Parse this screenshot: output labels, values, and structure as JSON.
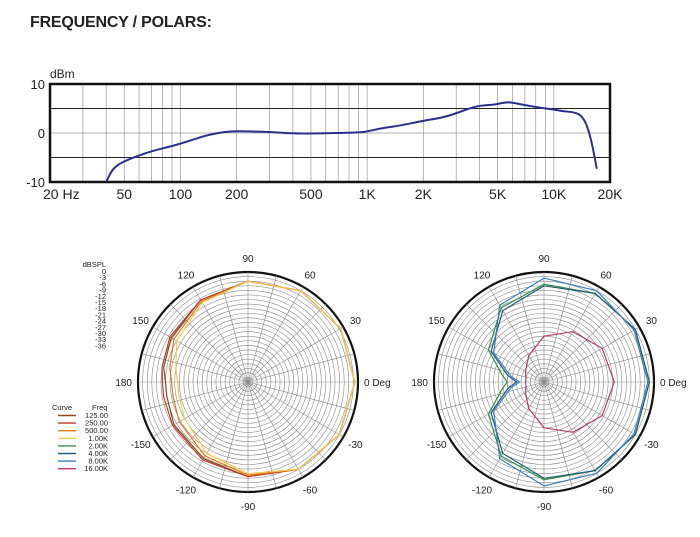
{
  "page": {
    "title": "FREQUENCY / POLARS:"
  },
  "chart_data": [
    {
      "type": "line",
      "ylabel": "dBm",
      "x_scale": "log",
      "xlim": [
        20,
        20000
      ],
      "ylim": [
        -10,
        10
      ],
      "grid": true,
      "x_tick_labels": [
        {
          "value": 20,
          "label": "20  Hz"
        },
        {
          "value": 50,
          "label": "50"
        },
        {
          "value": 100,
          "label": "100"
        },
        {
          "value": 200,
          "label": "200"
        },
        {
          "value": 500,
          "label": "500"
        },
        {
          "value": 1000,
          "label": "1K"
        },
        {
          "value": 2000,
          "label": "2K"
        },
        {
          "value": 5000,
          "label": "5K"
        },
        {
          "value": 10000,
          "label": "10K"
        },
        {
          "value": 20000,
          "label": "20K"
        }
      ],
      "y_tick_labels": [
        {
          "value": 10,
          "label": "10"
        },
        {
          "value": 0,
          "label": "0"
        },
        {
          "value": -10,
          "label": "-10"
        }
      ],
      "series": [
        {
          "color": "#2b2f8c",
          "x": [
            40,
            43,
            47,
            52,
            60,
            70,
            85,
            100,
            120,
            140,
            170,
            200,
            300,
            400,
            500,
            700,
            900,
            1000,
            1200,
            1500,
            2000,
            2500,
            3000,
            3500,
            4000,
            4500,
            5000,
            5500,
            6000,
            7000,
            8000,
            9000,
            10000,
            11000,
            13000,
            14000,
            15000,
            16000,
            17000
          ],
          "y": [
            -10,
            -7.5,
            -6.3,
            -5.5,
            -4.6,
            -3.7,
            -2.9,
            -2.2,
            -1.2,
            -0.4,
            0.2,
            0.4,
            0.2,
            -0.1,
            -0.1,
            0,
            0.1,
            0.3,
            1.0,
            1.5,
            2.5,
            3.1,
            4.0,
            5.0,
            5.6,
            5.7,
            5.9,
            6.3,
            6.2,
            5.7,
            5.3,
            5.0,
            4.8,
            4.5,
            4.2,
            3.6,
            1.8,
            -2.0,
            -7.3
          ]
        }
      ]
    },
    {
      "type": "polar",
      "legend_title_curve": "Curve",
      "legend_title_freq": "Freq",
      "radial_unit": "dBSPL",
      "radial_tick_labels": [
        "0",
        "-3",
        "-6",
        "-9",
        "-12",
        "-15",
        "-18",
        "-21",
        "-24",
        "-27",
        "-30",
        "-33",
        "-36"
      ],
      "rlim": [
        -36,
        0
      ],
      "angle_labels": [
        "0 Deg",
        "30",
        "60",
        "90",
        "120",
        "150",
        "180",
        "-150",
        "-120",
        "-90",
        "-60",
        "-30"
      ],
      "angles": [
        0,
        30,
        60,
        90,
        120,
        150,
        180,
        210,
        240,
        270,
        300,
        330
      ],
      "series": [
        {
          "name": "125.00",
          "color": "#8b4a1e",
          "r": [
            -1,
            -1,
            -1.5,
            -3,
            -5,
            -7,
            -8,
            -9,
            -9,
            -8,
            -7,
            -5,
            -3,
            -1.5,
            -1
          ]
        },
        {
          "name": "250.00",
          "color": "#c0392b",
          "r": [
            -1,
            -1,
            -1.5,
            -3,
            -5,
            -6.5,
            -7.5,
            -8,
            -8,
            -7.5,
            -6.5,
            -5,
            -3,
            -1.5,
            -1
          ]
        },
        {
          "name": "500.00",
          "color": "#e07b1a",
          "r": [
            -1,
            -1,
            -1.5,
            -3,
            -5.5,
            -8,
            -10,
            -11,
            -11,
            -10,
            -8,
            -5.5,
            -3,
            -1.5,
            -1
          ]
        },
        {
          "name": "1.00K",
          "color": "#f2c94c",
          "r": [
            -1,
            -1,
            -1.5,
            -3,
            -6,
            -9,
            -12,
            -13,
            -13,
            -12,
            -9,
            -6,
            -3,
            -1.5,
            -1
          ]
        },
        {
          "name": "2.00K",
          "color": "#3a8f4a",
          "r": [
            -1.5,
            -1.5,
            -2.5,
            -4,
            -8,
            -15,
            -22,
            -24,
            -22,
            -15,
            -8,
            -4,
            -2.5,
            -1.5,
            -1.5
          ]
        },
        {
          "name": "4.00K",
          "color": "#1f5f7a",
          "r": [
            -1.5,
            -1.5,
            -2.5,
            -4.5,
            -9,
            -16,
            -24,
            -27,
            -24,
            -16,
            -9,
            -4.5,
            -2.5,
            -1.5,
            -1.5
          ]
        },
        {
          "name": "8.00K",
          "color": "#3a7fc1",
          "r": [
            -2,
            -2,
            -1.5,
            -2,
            -7,
            -17,
            -25,
            -28,
            -25,
            -17,
            -7,
            -2,
            -1.5,
            -2,
            -2
          ]
        },
        {
          "name": "16.00K",
          "color": "#b8396b",
          "r": [
            -13,
            -14,
            -17,
            -21,
            -26,
            -29,
            -30,
            -30,
            -30,
            -29,
            -26,
            -21,
            -17,
            -14,
            -13
          ]
        }
      ],
      "series_angles": [
        0,
        30,
        60,
        90,
        120,
        150,
        170,
        180,
        190,
        210,
        240,
        270,
        300,
        330,
        360
      ]
    },
    {
      "type": "polar",
      "rlim": [
        -36,
        0
      ],
      "angle_labels": [
        "0 Deg",
        "30",
        "60",
        "90",
        "120",
        "150",
        "180",
        "-150",
        "-120",
        "-90",
        "-60",
        "-30"
      ],
      "angles": [
        0,
        30,
        60,
        90,
        120,
        150,
        180,
        210,
        240,
        270,
        300,
        330
      ]
    }
  ]
}
